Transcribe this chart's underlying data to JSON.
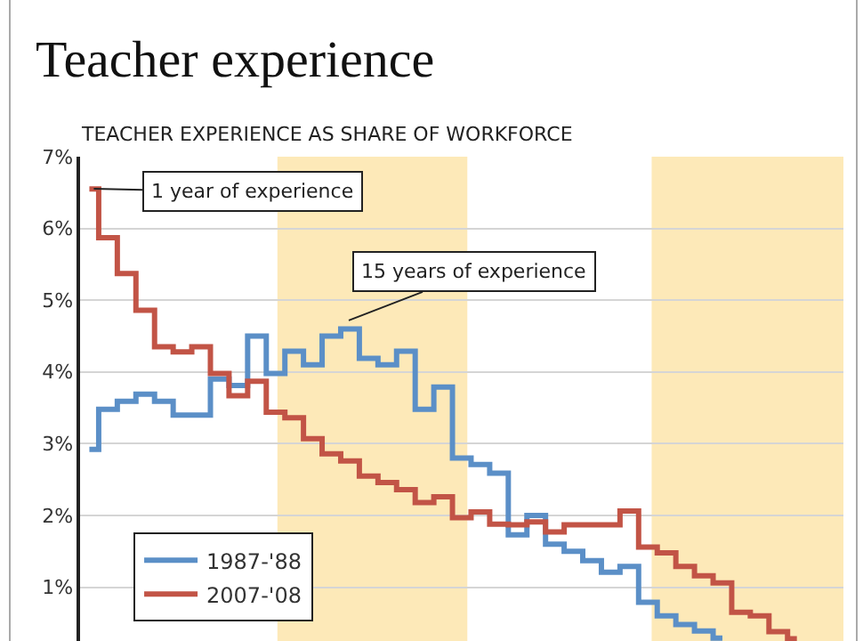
{
  "chart_data": {
    "type": "step",
    "title": "Teacher experience",
    "subtitle": "TEACHER EXPERIENCE AS SHARE OF WORKFORCE",
    "categories": [
      null,
      null,
      null,
      null,
      null,
      null,
      null,
      null,
      null,
      null,
      null,
      null,
      null,
      null,
      null,
      null,
      null,
      null,
      null,
      null,
      null,
      null,
      null,
      null,
      null,
      null,
      null,
      null,
      null,
      null,
      null,
      null,
      null,
      null,
      null,
      null,
      null,
      null,
      null
    ],
    "series": [
      {
        "name": "1987-'88",
        "color": "#5b8fc7",
        "values": [
          2.92,
          3.48,
          3.59,
          3.69,
          3.59,
          3.4,
          3.4,
          3.9,
          3.81,
          4.5,
          3.98,
          4.29,
          4.1,
          4.5,
          4.6,
          4.19,
          4.1,
          4.29,
          3.48,
          3.79,
          2.8,
          2.71,
          2.59,
          1.73,
          2.0,
          1.6,
          1.5,
          1.37,
          1.21,
          1.29,
          0.79,
          0.6,
          0.48,
          0.39,
          0.29,
          null,
          null,
          null,
          null
        ]
      },
      {
        "name": "2007-'08",
        "color": "#c25446",
        "values": [
          6.55,
          5.87,
          5.37,
          4.86,
          4.35,
          4.28,
          4.35,
          3.98,
          3.67,
          3.87,
          3.44,
          3.36,
          3.07,
          2.86,
          2.76,
          2.55,
          2.46,
          2.36,
          2.18,
          2.26,
          1.97,
          2.05,
          1.88,
          1.87,
          1.91,
          1.77,
          1.87,
          1.87,
          1.87,
          2.06,
          1.56,
          1.48,
          1.29,
          1.16,
          1.06,
          0.65,
          0.6,
          0.38,
          0.28
        ]
      }
    ],
    "ylim": [
      0.25,
      7
    ],
    "yticks": [
      {
        "value": 1,
        "label": "1%"
      },
      {
        "value": 2,
        "label": "2%"
      },
      {
        "value": 3,
        "label": "3%"
      },
      {
        "value": 4,
        "label": "4%"
      },
      {
        "value": 5,
        "label": "5%"
      },
      {
        "value": 6,
        "label": "6%"
      },
      {
        "value": 7,
        "label": "7%"
      }
    ],
    "grid": "y",
    "legend": "bottom left",
    "tick_labels": "y",
    "annotations": [
      "1 year of experience",
      "15 years of experience"
    ]
  }
}
